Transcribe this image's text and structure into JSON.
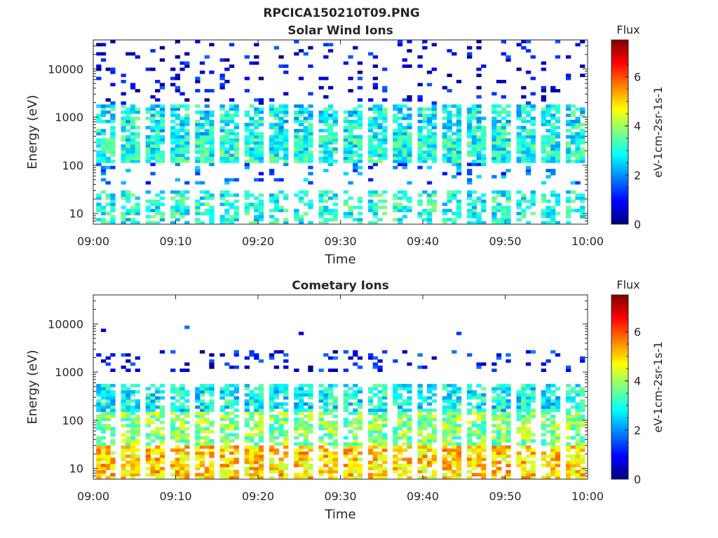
{
  "figure": {
    "title": "RPCICA150210T09.PNG"
  },
  "chart_data": [
    {
      "type": "heatmap",
      "name": "solar-wind",
      "title": "Solar Wind Ions",
      "xlabel": "Time",
      "ylabel": "Energy (eV)",
      "x_range": [
        "09:00",
        "10:00"
      ],
      "x_ticks": [
        "09:00",
        "09:10",
        "09:20",
        "09:30",
        "09:40",
        "09:50",
        "10:00"
      ],
      "y_scale": "log",
      "y_range": [
        6,
        40000
      ],
      "y_ticks": [
        {
          "v": 10,
          "label": "10"
        },
        {
          "v": 100,
          "label": "100"
        },
        {
          "v": 1000,
          "label": "1000"
        },
        {
          "v": 10000,
          "label": "10000"
        }
      ],
      "colorbar": {
        "label": "Flux",
        "units": "eV-1cm-2sr-1s-1",
        "range": [
          0,
          7.5
        ],
        "ticks": [
          "0",
          "2",
          "4",
          "6"
        ]
      },
      "cycles_per_hour": 20,
      "bands": [
        {
          "lo": 6,
          "hi": 30,
          "level": 3.0,
          "density": 0.55
        },
        {
          "lo": 40,
          "hi": 120,
          "level": 1.8,
          "density": 0.15
        },
        {
          "lo": 120,
          "hi": 400,
          "level": 3.0,
          "density": 0.9
        },
        {
          "lo": 400,
          "hi": 1800,
          "level": 2.8,
          "density": 0.7
        },
        {
          "lo": 1800,
          "hi": 40000,
          "level": 0.8,
          "density": 0.12
        }
      ]
    },
    {
      "type": "heatmap",
      "name": "cometary",
      "title": "Cometary Ions",
      "xlabel": "Time",
      "ylabel": "Energy (eV)",
      "x_range": [
        "09:00",
        "10:00"
      ],
      "x_ticks": [
        "09:00",
        "09:10",
        "09:20",
        "09:30",
        "09:40",
        "09:50",
        "10:00"
      ],
      "y_scale": "log",
      "y_range": [
        6,
        40000
      ],
      "y_ticks": [
        {
          "v": 10,
          "label": "10"
        },
        {
          "v": 100,
          "label": "100"
        },
        {
          "v": 1000,
          "label": "1000"
        },
        {
          "v": 10000,
          "label": "10000"
        }
      ],
      "colorbar": {
        "label": "Flux",
        "units": "eV-1cm-2sr-1s-1",
        "range": [
          0,
          7.5
        ],
        "ticks": [
          "0",
          "2",
          "4",
          "6"
        ]
      },
      "cycles_per_hour": 20,
      "bands": [
        {
          "lo": 6,
          "hi": 30,
          "level": 5.0,
          "density": 0.75
        },
        {
          "lo": 30,
          "hi": 150,
          "level": 3.8,
          "density": 0.7
        },
        {
          "lo": 150,
          "hi": 600,
          "level": 2.8,
          "density": 0.75
        },
        {
          "lo": 1000,
          "hi": 3000,
          "level": 1.0,
          "density": 0.2
        },
        {
          "lo": 6000,
          "hi": 9000,
          "level": 1.2,
          "density": 0.02
        }
      ]
    }
  ]
}
